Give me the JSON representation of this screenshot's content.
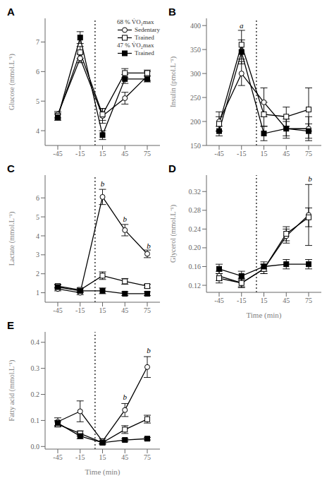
{
  "chart_data": [
    {
      "type": "line",
      "title": "A",
      "y_label": "Glucose (mmol.L⁻¹)",
      "x": [
        -45,
        -15,
        15,
        45,
        75
      ],
      "xlim": [
        -62,
        92
      ],
      "xticks": [
        -45,
        -15,
        15,
        45,
        75
      ],
      "ylim": [
        3.5,
        7.8
      ],
      "yticks": [
        4,
        5,
        6,
        7
      ],
      "vline_x": 5,
      "legend": "upper right",
      "annotations": [],
      "series": [
        {
          "name": "Sedentary",
          "group": "68 % V̇O₂max",
          "color": "#000000",
          "marker": "open-circle",
          "line_style": "solid",
          "values": [
            4.55,
            6.45,
            4.5,
            5.1,
            5.85
          ],
          "errors": [
            0.1,
            0.15,
            0.25,
            0.2,
            0.15
          ]
        },
        {
          "name": "Trained",
          "group": "68 % V̇O₂max",
          "color": "#000000",
          "marker": "open-square",
          "line_style": "solid",
          "values": [
            4.5,
            6.65,
            4.55,
            5.95,
            5.95
          ],
          "errors": [
            0.1,
            0.2,
            0.2,
            0.15,
            0.1
          ]
        },
        {
          "name": "Trained",
          "group": "47 % V̇O₂max",
          "color": "#000000",
          "marker": "square",
          "line_style": "solid",
          "values": [
            4.45,
            7.15,
            3.85,
            5.75,
            5.75
          ],
          "errors": [
            0.1,
            0.2,
            0.15,
            0.15,
            0.1
          ]
        }
      ]
    },
    {
      "type": "line",
      "title": "B",
      "y_label": "Insulin (pmol.L⁻¹)",
      "x": [
        -45,
        -15,
        15,
        45,
        75
      ],
      "xlim": [
        -62,
        92
      ],
      "xticks": [
        -45,
        -15,
        15,
        45,
        75
      ],
      "ylim": [
        150,
        415
      ],
      "yticks": [
        150,
        200,
        250,
        300,
        350,
        400
      ],
      "vline_x": 5,
      "annotations": [
        {
          "text": "a",
          "x": -15,
          "y": 393
        }
      ],
      "series": [
        {
          "name": "Sedentary",
          "group": "68 % V̇O₂max",
          "color": "#000000",
          "marker": "open-circle",
          "line_style": "solid",
          "values": [
            200,
            300,
            240,
            185,
            185
          ],
          "errors": [
            20,
            25,
            30,
            20,
            25
          ]
        },
        {
          "name": "Trained",
          "group": "68 % V̇O₂max",
          "color": "#000000",
          "marker": "open-square",
          "line_style": "solid",
          "values": [
            195,
            360,
            215,
            210,
            225
          ],
          "errors": [
            15,
            30,
            25,
            20,
            45
          ]
        },
        {
          "name": "Trained",
          "group": "47 % V̇O₂max",
          "color": "#000000",
          "marker": "square",
          "line_style": "solid",
          "values": [
            180,
            345,
            175,
            185,
            180
          ],
          "errors": [
            10,
            25,
            15,
            15,
            15
          ]
        }
      ]
    },
    {
      "type": "line",
      "title": "C",
      "y_label": "Lactate (mmol.L⁻¹)",
      "x": [
        -45,
        -15,
        15,
        45,
        75
      ],
      "xlim": [
        -62,
        92
      ],
      "xticks": [
        -45,
        -15,
        15,
        45,
        75
      ],
      "ylim": [
        0.5,
        7.2
      ],
      "yticks": [
        1,
        2,
        3,
        4,
        5,
        6
      ],
      "vline_x": 5,
      "annotations": [
        {
          "text": "b",
          "x": 15,
          "y": 6.57
        },
        {
          "text": "b",
          "x": 45,
          "y": 4.72
        },
        {
          "text": "b",
          "x": 77,
          "y": 3.3
        }
      ],
      "series": [
        {
          "name": "Sedentary",
          "group": "68 % V̇O₂max",
          "color": "#000000",
          "marker": "open-circle",
          "line_style": "solid",
          "values": [
            1.2,
            1.0,
            6.05,
            4.3,
            3.05
          ],
          "errors": [
            0.1,
            0.1,
            0.4,
            0.3,
            0.2
          ]
        },
        {
          "name": "Trained",
          "group": "68 % V̇O₂max",
          "color": "#000000",
          "marker": "open-square",
          "line_style": "solid",
          "values": [
            1.35,
            1.15,
            1.9,
            1.6,
            1.35
          ],
          "errors": [
            0.1,
            0.1,
            0.2,
            0.15,
            0.1
          ]
        },
        {
          "name": "Trained",
          "group": "47 % V̇O₂max",
          "color": "#000000",
          "marker": "square",
          "line_style": "solid",
          "values": [
            1.3,
            1.1,
            1.1,
            0.95,
            0.95
          ],
          "errors": [
            0.1,
            0.1,
            0.15,
            0.1,
            0.1
          ]
        }
      ]
    },
    {
      "type": "line",
      "title": "D",
      "y_label": "Glycerol (mmol.L⁻¹)",
      "x_label": "Time (min)",
      "x": [
        -45,
        -15,
        15,
        45,
        75
      ],
      "xlim": [
        -62,
        92
      ],
      "xticks": [
        -45,
        -15,
        15,
        45,
        75
      ],
      "ylim": [
        0.105,
        0.355
      ],
      "yticks": [
        0.12,
        0.16,
        {
          "value": 0.2,
          "label": "0.20"
        },
        0.24,
        0.28,
        0.32
      ],
      "vline_x": 5,
      "annotations": [
        {
          "text": "b",
          "x": 77,
          "y": 0.34
        }
      ],
      "series": [
        {
          "name": "Sedentary",
          "group": "68 % V̇O₂max",
          "color": "#000000",
          "marker": "open-circle",
          "line_style": "solid",
          "values": [
            0.14,
            0.125,
            0.155,
            0.225,
            0.27
          ],
          "errors": [
            0.01,
            0.01,
            0.01,
            0.015,
            0.065
          ]
        },
        {
          "name": "Trained",
          "group": "68 % V̇O₂max",
          "color": "#000000",
          "marker": "open-square",
          "line_style": "solid",
          "values": [
            0.135,
            0.125,
            0.155,
            0.23,
            0.265
          ],
          "errors": [
            0.01,
            0.008,
            0.01,
            0.015,
            0.02
          ]
        },
        {
          "name": "Trained",
          "group": "47 % V̇O₂max",
          "color": "#000000",
          "marker": "square",
          "line_style": "solid",
          "values": [
            0.155,
            0.14,
            0.16,
            0.165,
            0.165
          ],
          "errors": [
            0.01,
            0.01,
            0.01,
            0.01,
            0.01
          ]
        }
      ]
    },
    {
      "type": "line",
      "title": "E",
      "y_label": "Fatty acid (mmol.L⁻¹)",
      "x_label": "Time (min)",
      "x": [
        -45,
        -15,
        15,
        45,
        75
      ],
      "xlim": [
        -62,
        92
      ],
      "xticks": [
        -45,
        -15,
        15,
        45,
        75
      ],
      "ylim": [
        -0.01,
        0.44
      ],
      "yticks": [
        {
          "value": 0,
          "label": "0.0"
        },
        0.1,
        0.2,
        0.3,
        0.4
      ],
      "vline_x": 5,
      "annotations": [
        {
          "text": "b",
          "x": 45,
          "y": 0.177
        },
        {
          "text": "b",
          "x": 77,
          "y": 0.355
        }
      ],
      "series": [
        {
          "name": "Sedentary",
          "group": "68 % V̇O₂max",
          "color": "#000000",
          "marker": "open-circle",
          "line_style": "solid",
          "values": [
            0.095,
            0.135,
            0.02,
            0.14,
            0.305
          ],
          "errors": [
            0.015,
            0.04,
            0.01,
            0.025,
            0.04
          ]
        },
        {
          "name": "Trained",
          "group": "68 % V̇O₂max",
          "color": "#000000",
          "marker": "open-square",
          "line_style": "solid",
          "values": [
            0.085,
            0.05,
            0.015,
            0.065,
            0.105
          ],
          "errors": [
            0.01,
            0.01,
            0.005,
            0.015,
            0.015
          ]
        },
        {
          "name": "Trained",
          "group": "47 % V̇O₂max",
          "color": "#000000",
          "marker": "square",
          "line_style": "solid",
          "values": [
            0.09,
            0.04,
            0.015,
            0.025,
            0.03
          ],
          "errors": [
            0.01,
            0.01,
            0.005,
            0.005,
            0.005
          ]
        }
      ]
    }
  ]
}
